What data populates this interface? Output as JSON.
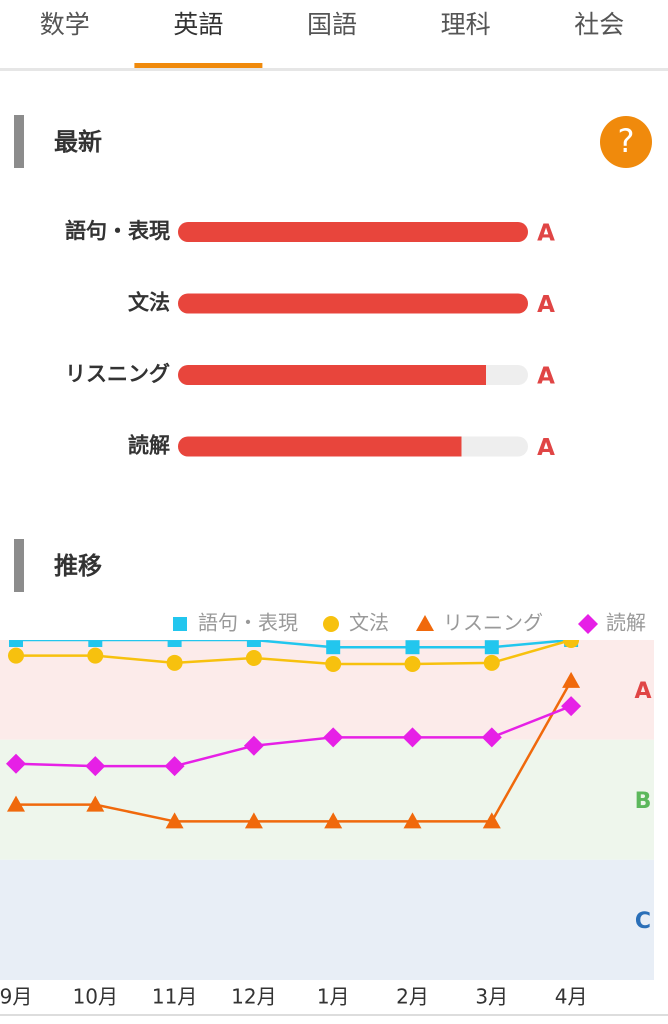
{
  "tabs": [
    "数学",
    "英語",
    "国語",
    "理科",
    "社会"
  ],
  "active_tab": 1,
  "latest": {
    "title": "最新",
    "help": "?",
    "max": 100,
    "color": "#e8453c",
    "items": [
      {
        "label": "語句・表現",
        "value": 100,
        "grade": "A"
      },
      {
        "label": "文法",
        "value": 100,
        "grade": "A"
      },
      {
        "label": "リスニング",
        "value": 88,
        "grade": "A"
      },
      {
        "label": "読解",
        "value": 81,
        "grade": "A"
      }
    ]
  },
  "chart_data": {
    "type": "line",
    "title": "推移",
    "categories": [
      "9月",
      "10月",
      "11月",
      "12月",
      "1月",
      "2月",
      "3月",
      "4月"
    ],
    "ylim": [
      0,
      2.83
    ],
    "bands": [
      {
        "label": "A",
        "from": 2,
        "to": 2.83,
        "color": "#e04545",
        "fill": "#fcebea"
      },
      {
        "label": "B",
        "from": 1,
        "to": 2,
        "color": "#5cb85c",
        "fill": "#eef6ec"
      },
      {
        "label": "C",
        "from": 0,
        "to": 1,
        "color": "#2a6fb8",
        "fill": "#e8eef6"
      }
    ],
    "series": [
      {
        "name": "語句・表現",
        "color": "#22c6ee",
        "marker": "square",
        "values": [
          2.83,
          2.83,
          2.83,
          2.83,
          2.77,
          2.77,
          2.77,
          2.83
        ]
      },
      {
        "name": "文法",
        "color": "#f7c10e",
        "marker": "circle",
        "values": [
          2.7,
          2.7,
          2.64,
          2.68,
          2.63,
          2.63,
          2.64,
          2.83
        ]
      },
      {
        "name": "リスニング",
        "color": "#f0690c",
        "marker": "triangle",
        "values": [
          1.46,
          1.46,
          1.32,
          1.32,
          1.32,
          1.32,
          1.32,
          2.49
        ]
      },
      {
        "name": "読解",
        "color": "#e620e6",
        "marker": "diamond",
        "values": [
          1.8,
          1.78,
          1.78,
          1.95,
          2.02,
          2.02,
          2.02,
          2.28
        ]
      }
    ]
  }
}
